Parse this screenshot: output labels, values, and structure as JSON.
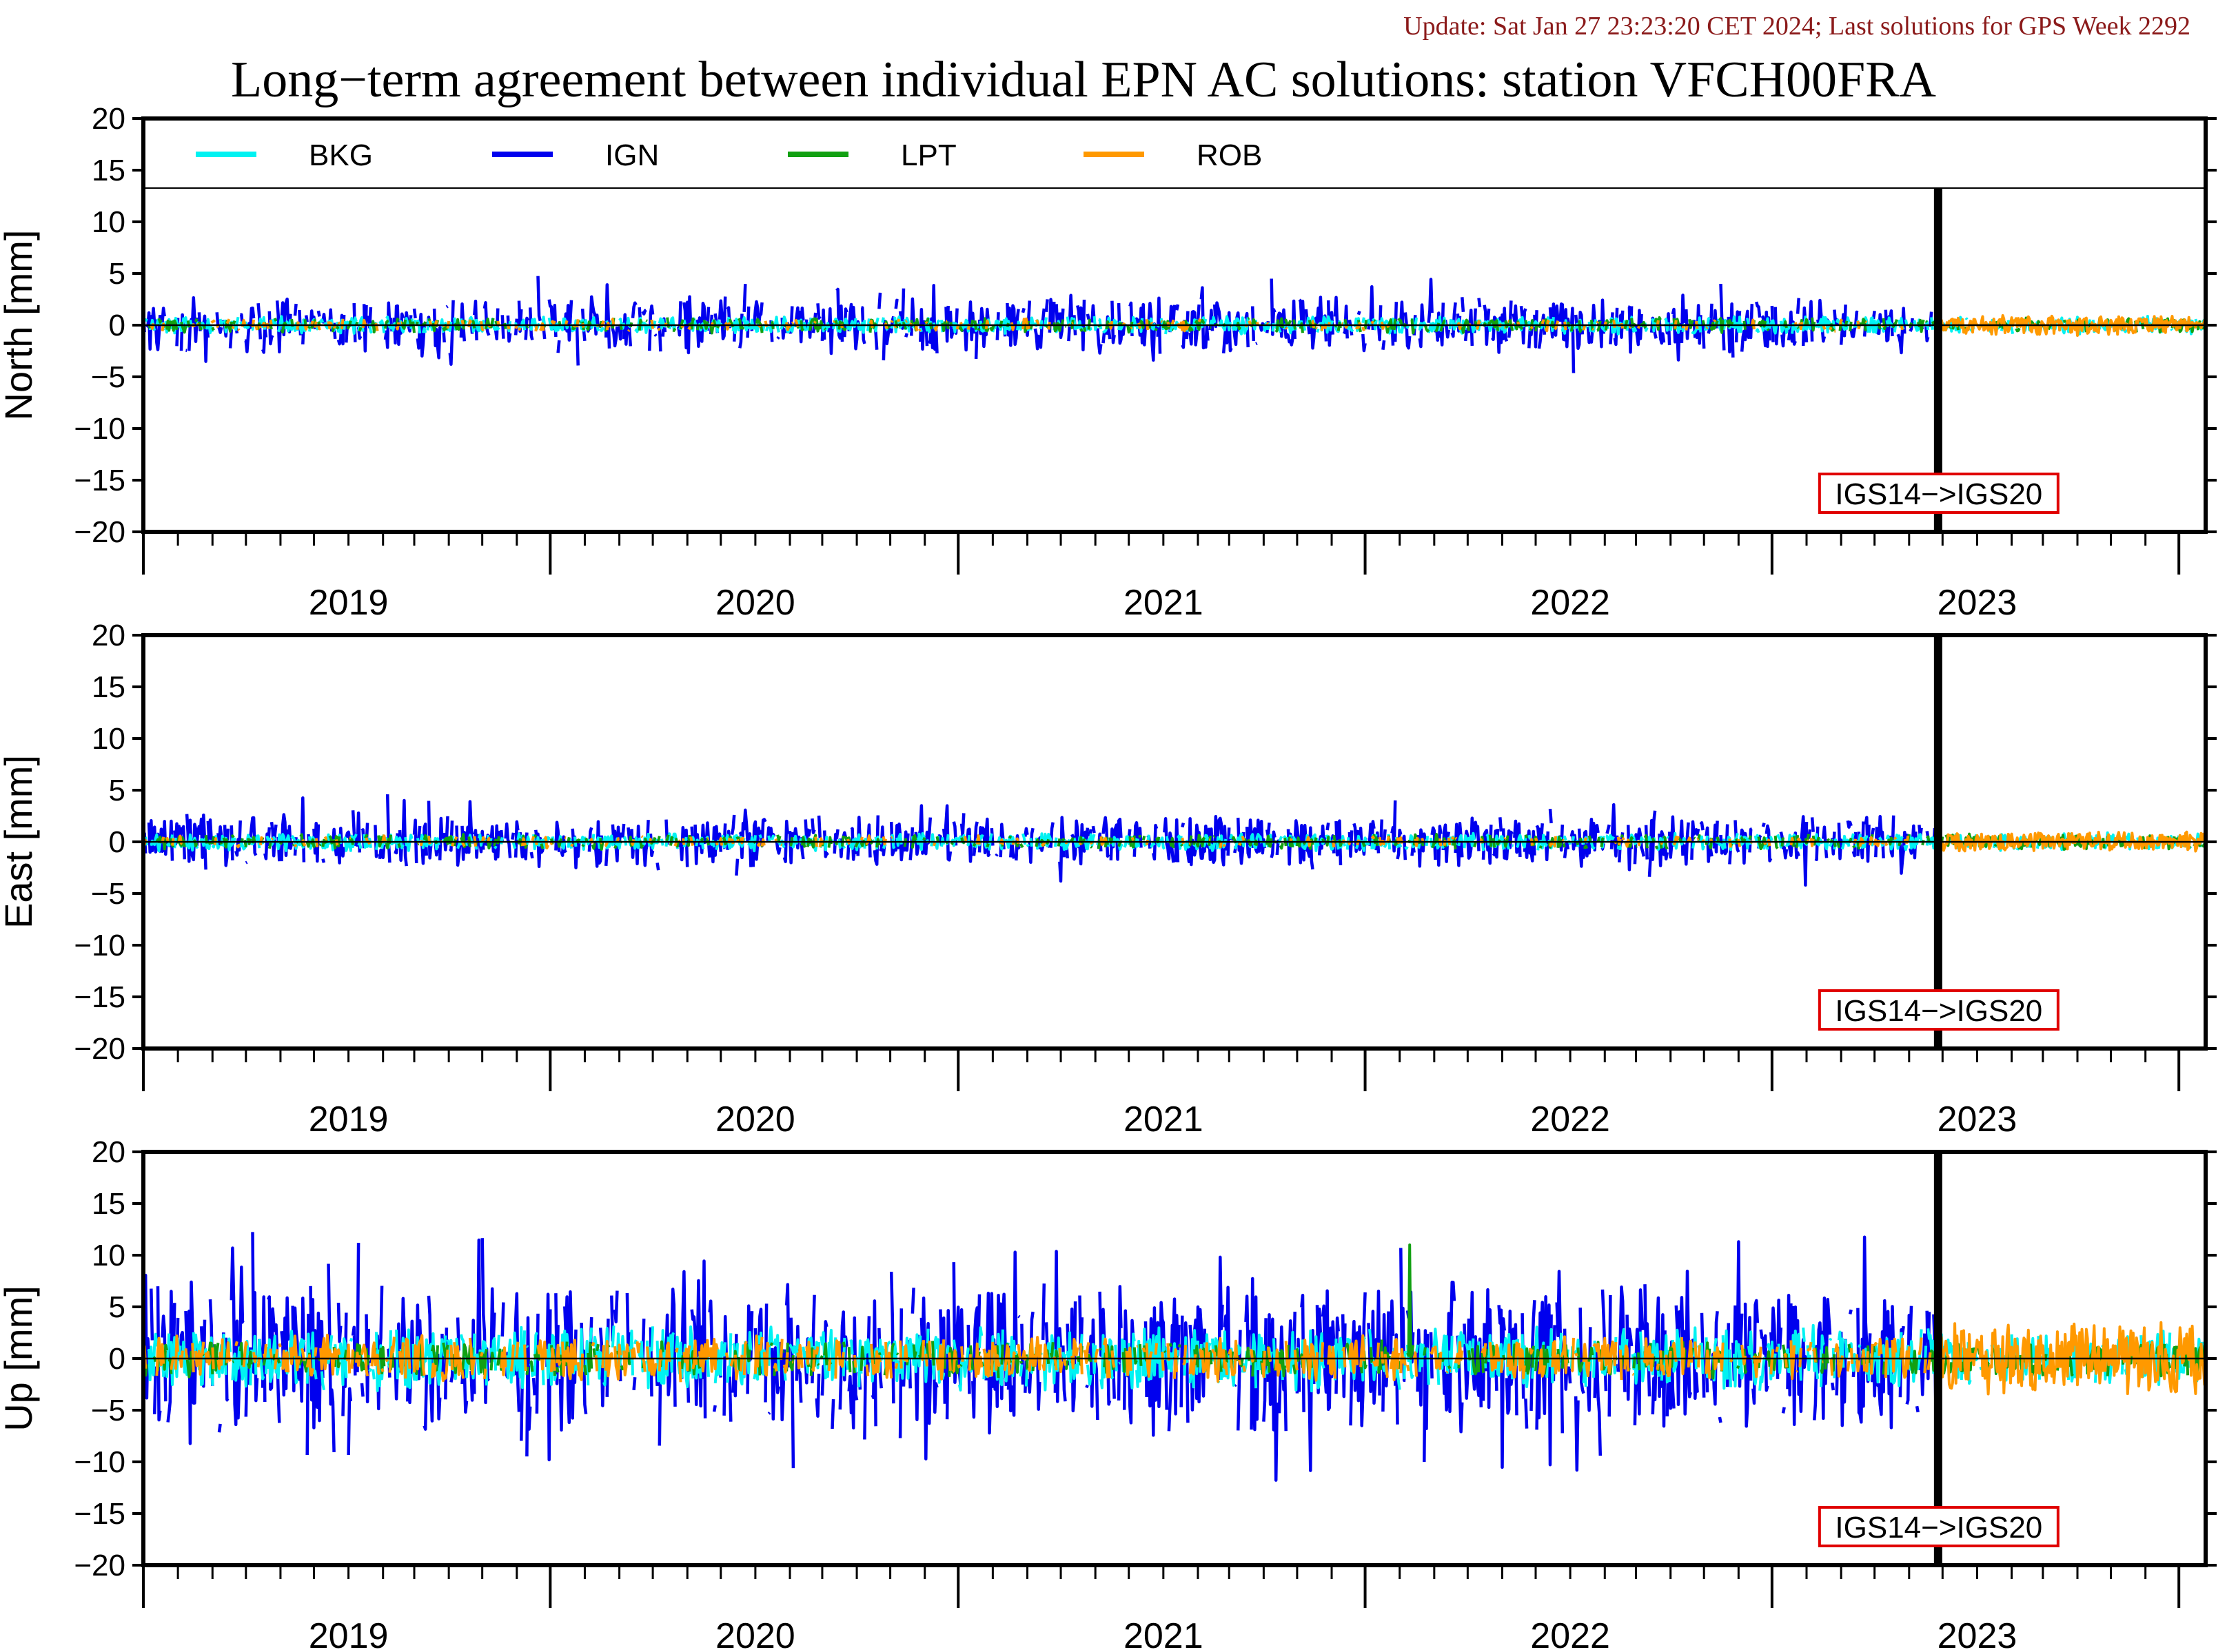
{
  "update_text": "Update: Sat Jan 27 23:23:20 CET 2024; Last solutions for GPS Week 2292",
  "chart_data": {
    "type": "line",
    "title": "Long−term agreement between individual EPN AC solutions: station VFCH00FRA",
    "x_range": [
      "2018-07-01",
      "2023-07-25"
    ],
    "year_labels": [
      "2019",
      "2020",
      "2021",
      "2022",
      "2023"
    ],
    "reference_change": {
      "date": "2022-11-27",
      "label": "IGS14−>IGS20"
    },
    "legend": {
      "placement": "top inside first panel"
    },
    "series": [
      {
        "name": "BKG",
        "color": "#00f2f2"
      },
      {
        "name": "IGN",
        "color": "#0000ee"
      },
      {
        "name": "LPT",
        "color": "#12a012"
      },
      {
        "name": "ROB",
        "color": "#ff9900"
      }
    ],
    "panels": [
      {
        "ylabel": "North [mm]",
        "ylim": [
          -20,
          20
        ],
        "yticks": [
          "20",
          "15",
          "10",
          "5",
          "0",
          "−5",
          "−10",
          "−15",
          "−20"
        ],
        "amplitude_mm": {
          "BKG": 0.7,
          "IGN": 2.2,
          "LPT": 0.6,
          "ROB": 0.5
        },
        "extremes": [
          {
            "series": "IGN",
            "date": "2020-05-25",
            "value": 4.0
          },
          {
            "series": "IGN",
            "date": "2021-04-08",
            "value": 4.5
          },
          {
            "series": "IGN",
            "date": "2020-04-10",
            "value": -3.2
          },
          {
            "series": "IGN",
            "date": "2022-04-12",
            "value": 2.9
          }
        ]
      },
      {
        "ylabel": "East [mm]",
        "ylim": [
          -20,
          20
        ],
        "yticks": [
          "20",
          "15",
          "10",
          "5",
          "0",
          "−5",
          "−10",
          "−15",
          "−20"
        ],
        "amplitude_mm": {
          "BKG": 0.7,
          "IGN": 2.0,
          "LPT": 0.6,
          "ROB": 0.5
        },
        "extremes": [
          {
            "series": "IGN",
            "date": "2019-02-05",
            "value": 4.6
          },
          {
            "series": "IGN",
            "date": "2019-02-20",
            "value": 4.0
          },
          {
            "series": "IGN",
            "date": "2019-10-15",
            "value": 3.5
          },
          {
            "series": "IGN",
            "date": "2020-10-01",
            "value": -3.8
          }
        ]
      },
      {
        "ylabel": "Up [mm]",
        "ylim": [
          -20,
          20
        ],
        "yticks": [
          "20",
          "15",
          "10",
          "5",
          "0",
          "−5",
          "−10",
          "−15",
          "−20"
        ],
        "amplitude_mm": {
          "BKG": 2.5,
          "IGN": 6.0,
          "LPT": 1.5,
          "ROB": 1.8
        },
        "extremes": [
          {
            "series": "IGN",
            "date": "2019-01-10",
            "value": 11.2
          },
          {
            "series": "IGN",
            "date": "2019-02-22",
            "value": -9.5
          },
          {
            "series": "IGN",
            "date": "2019-06-30",
            "value": -9.8
          },
          {
            "series": "LPT",
            "date": "2021-08-10",
            "value": 11.0
          },
          {
            "series": "IGN",
            "date": "2022-06-01",
            "value": 11.3
          },
          {
            "series": "IGN",
            "date": "2022-05-05",
            "value": -10.2
          }
        ]
      }
    ]
  }
}
